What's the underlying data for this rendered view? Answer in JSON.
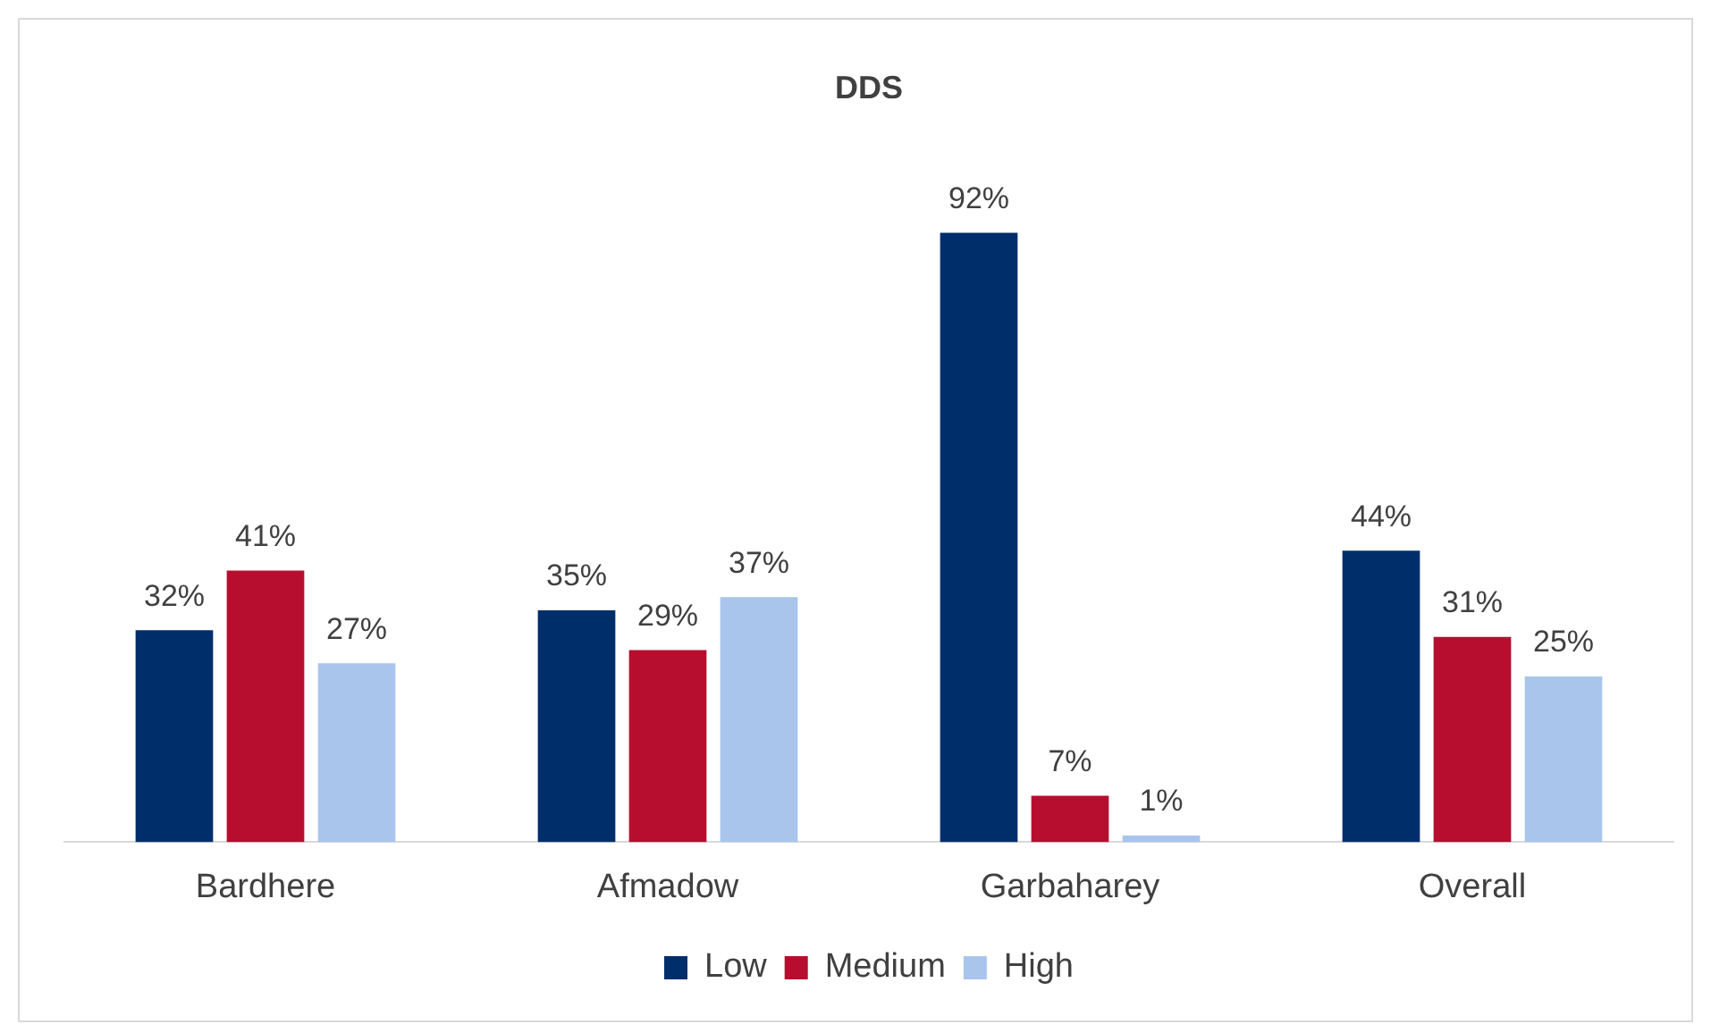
{
  "chart_data": {
    "type": "bar",
    "title": "DDS",
    "categories": [
      "Bardhere",
      "Afmadow",
      "Garbaharey",
      "Overall"
    ],
    "series": [
      {
        "name": "Low",
        "color": "#002e6b",
        "values": [
          32,
          35,
          92,
          44
        ],
        "value_labels": [
          "32%",
          "35%",
          "92%",
          "44%"
        ]
      },
      {
        "name": "Medium",
        "color": "#b70e2f",
        "values": [
          41,
          29,
          7,
          31
        ],
        "value_labels": [
          "41%",
          "29%",
          "7%",
          "31%"
        ]
      },
      {
        "name": "High",
        "color": "#a9c5ec",
        "values": [
          27,
          37,
          1,
          25
        ],
        "value_labels": [
          "27%",
          "37%",
          "1%",
          "25%"
        ]
      }
    ],
    "grid": false,
    "legend": "bottom"
  }
}
